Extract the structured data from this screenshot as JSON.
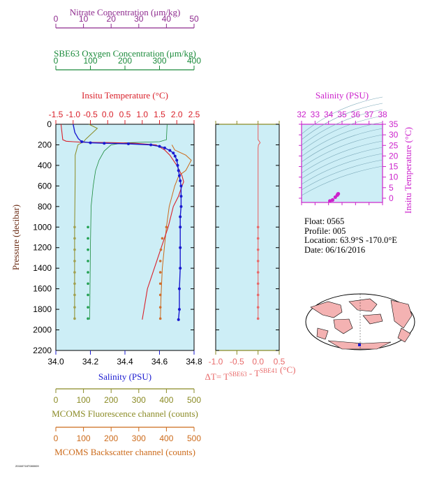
{
  "colors": {
    "plot_bg": "#cdeef6",
    "nitrate": "#8e2a8e",
    "oxygen": "#1a8a3a",
    "temperature": "#d9202a",
    "salinity": "#1a1ad0",
    "fluorescence": "#8a8a24",
    "backscatter": "#cc6a1a",
    "delta_t": "#e86a6a",
    "ts_axis": "#cc22cc",
    "fluor_points": "#a0a050",
    "back_points": "#d07030",
    "oxy_points": "#20a050"
  },
  "info": {
    "float": "Float:  0565",
    "profile": "Profile:  005",
    "location": "Location:  63.9°S  -170.0°E",
    "date": "Date:  06/16/2016"
  },
  "footer_tiny": "20160716T080009",
  "chart_data": [
    {
      "type": "line",
      "panel": "main_profile",
      "ylabel": "Pressure (decibar)",
      "ylim": [
        0,
        2200
      ],
      "y_ticks": [
        "0",
        "200",
        "400",
        "600",
        "800",
        "1000",
        "1200",
        "1400",
        "1600",
        "1800",
        "2000",
        "2200"
      ],
      "y_tick_values": [
        0,
        200,
        400,
        600,
        800,
        1000,
        1200,
        1400,
        1600,
        1800,
        2000,
        2200
      ],
      "y_inverted": true,
      "axes": {
        "nitrate": {
          "label": "Nitrate Concentration (μm/kg)",
          "range": [
            0,
            50
          ],
          "ticks": [
            "0",
            "10",
            "20",
            "30",
            "40",
            "50"
          ],
          "tick_values": [
            0,
            10,
            20,
            30,
            40,
            50
          ]
        },
        "oxygen": {
          "label": "SBE63 Oxygen Concentration (μm/kg)",
          "range": [
            0,
            400
          ],
          "ticks": [
            "0",
            "100",
            "200",
            "300",
            "400"
          ],
          "tick_values": [
            0,
            100,
            200,
            300,
            400
          ]
        },
        "temperature": {
          "label": "Insitu Temperature (°C)",
          "range": [
            -1.5,
            2.5
          ],
          "ticks": [
            "-1.5",
            "-1.0",
            "-0.5",
            "0.0",
            "0.5",
            "1.0",
            "1.5",
            "2.0",
            "2.5"
          ],
          "tick_values": [
            -1.5,
            -1.0,
            -0.5,
            0.0,
            0.5,
            1.0,
            1.5,
            2.0,
            2.5
          ]
        },
        "salinity": {
          "label": "Salinity (PSU)",
          "range": [
            34.0,
            34.8
          ],
          "ticks": [
            "34.0",
            "34.2",
            "34.4",
            "34.6",
            "34.8"
          ],
          "tick_values": [
            34.0,
            34.2,
            34.4,
            34.6,
            34.8
          ]
        },
        "fluorescence": {
          "label": "MCOMS Fluorescence channel (counts)",
          "range": [
            0,
            500
          ],
          "ticks": [
            "0",
            "100",
            "200",
            "300",
            "400",
            "500"
          ],
          "tick_values": [
            0,
            100,
            200,
            300,
            400,
            500
          ]
        },
        "backscatter": {
          "label": "MCOMS Backscatter channel (counts)",
          "range": [
            0,
            500
          ],
          "ticks": [
            "0",
            "100",
            "200",
            "300",
            "400",
            "500"
          ],
          "tick_values": [
            0,
            100,
            200,
            300,
            400,
            500
          ]
        }
      },
      "series": [
        {
          "key": "temperature",
          "x": [
            -1.35,
            -1.3,
            -1.2,
            -1.0,
            -0.7,
            0.0,
            0.8,
            1.4,
            1.65,
            1.8,
            2.0,
            2.15,
            2.2,
            2.15,
            2.05,
            1.9,
            1.75,
            1.55,
            1.35,
            1.15,
            1.0
          ],
          "y": [
            0,
            150,
            165,
            170,
            175,
            178,
            185,
            200,
            250,
            300,
            400,
            500,
            560,
            600,
            700,
            800,
            1000,
            1200,
            1400,
            1600,
            1900
          ]
        },
        {
          "key": "salinity",
          "x": [
            34.1,
            34.11,
            34.12,
            34.13,
            34.15,
            34.2,
            34.28,
            34.42,
            34.55,
            34.6,
            34.63,
            34.66,
            34.68,
            34.69,
            34.7,
            34.705,
            34.71,
            34.715,
            34.72,
            34.725,
            34.725,
            34.725,
            34.72,
            34.72,
            34.72,
            34.72,
            34.715,
            34.715,
            34.71
          ],
          "y": [
            0,
            80,
            110,
            140,
            170,
            180,
            185,
            190,
            200,
            215,
            230,
            255,
            280,
            310,
            350,
            400,
            450,
            500,
            550,
            600,
            700,
            800,
            900,
            1000,
            1200,
            1400,
            1600,
            1800,
            1900
          ]
        },
        {
          "key": "oxygen",
          "x": [
            322,
            320,
            300,
            200,
            160,
            140,
            125,
            115,
            108,
            102,
            100,
            98
          ],
          "y": [
            0,
            150,
            170,
            180,
            200,
            260,
            350,
            450,
            600,
            800,
            1200,
            1900
          ]
        },
        {
          "key": "fluorescence",
          "x": [
            120,
            150,
            110,
            100,
            80,
            70,
            70,
            68,
            68,
            68
          ],
          "y": [
            0,
            40,
            140,
            170,
            200,
            300,
            500,
            1000,
            1500,
            1900
          ]
        },
        {
          "key": "backscatter",
          "x": [
            420,
            430,
            470,
            490,
            480,
            470,
            445,
            430,
            410,
            400,
            385,
            380,
            378
          ],
          "y": [
            200,
            250,
            300,
            350,
            400,
            450,
            500,
            600,
            800,
            1000,
            1400,
            1700,
            1900
          ]
        },
        {
          "key": "oxygen_points",
          "x": [
            93,
            93,
            93,
            93,
            93,
            93,
            93,
            93,
            93
          ],
          "y": [
            1000,
            1110,
            1220,
            1330,
            1440,
            1550,
            1660,
            1780,
            1890
          ]
        }
      ]
    },
    {
      "type": "line",
      "panel": "delta_t",
      "xlabel": "ΔT= T",
      "xlabel_sup1": "SBE63",
      "xlabel_mid": " - T",
      "xlabel_sup2": "SBE41",
      "xlabel_end": " (°C)",
      "xlim": [
        -1.0,
        0.5
      ],
      "ylim": [
        0,
        2200
      ],
      "ticks": [
        "-1.0",
        "-0.5",
        "0.0",
        "0.5"
      ],
      "tick_values": [
        -1.0,
        -0.5,
        0.0,
        0.5
      ],
      "series": [
        {
          "name": "",
          "x": [
            0.0,
            0.0,
            0.02,
            0.05,
            0.01,
            0.0,
            0.0,
            0.0,
            0.0
          ],
          "y": [
            0,
            150,
            160,
            180,
            200,
            230,
            600,
            1200,
            1900
          ]
        }
      ],
      "points_y": [
        1000,
        1110,
        1220,
        1330,
        1440,
        1550,
        1660,
        1780,
        1890
      ]
    },
    {
      "type": "scatter",
      "panel": "ts_diagram",
      "xlabel": "Salinity (PSU)",
      "ylabel": "Insitu Temperature (°C)",
      "xlim": [
        32,
        38
      ],
      "ylim": [
        -2,
        35
      ],
      "x_ticks": [
        "32",
        "33",
        "34",
        "35",
        "36",
        "37",
        "38"
      ],
      "x_tick_values": [
        32,
        33,
        34,
        35,
        36,
        37,
        38
      ],
      "y_ticks": [
        "0",
        "5",
        "10",
        "15",
        "20",
        "25",
        "30",
        "35"
      ],
      "y_tick_values": [
        0,
        5,
        10,
        15,
        20,
        25,
        30,
        35
      ],
      "series": [
        {
          "name": "",
          "x": [
            34.1,
            34.3,
            34.5,
            34.65,
            34.7,
            34.72
          ],
          "y": [
            -1.3,
            -0.8,
            0.5,
            1.5,
            2.0,
            2.1
          ]
        }
      ]
    }
  ]
}
